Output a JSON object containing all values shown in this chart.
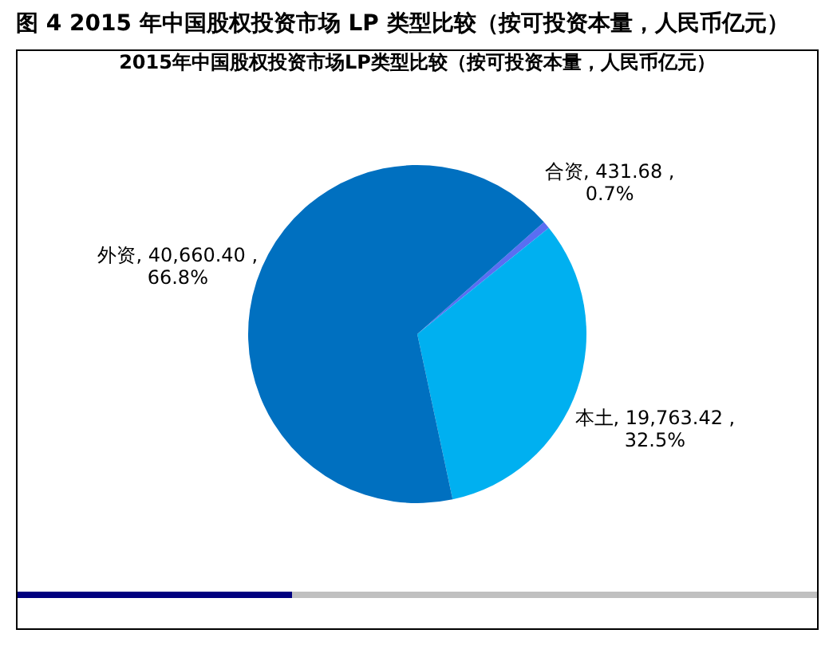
{
  "chart_data": {
    "type": "pie",
    "title": "图 4 2015 年中国股权投资市场 LP 类型比较（按可投资本量，人民币亿元）",
    "subtitle": "2015年中国股权投资市场LP类型比较（按可投资本量，人民币亿元）",
    "categories": [
      "合资",
      "本土",
      "外资"
    ],
    "values": [
      431.68,
      19763.42,
      40660.4
    ],
    "colors": [
      "#5a6ef2",
      "#00b0f0",
      "#0070c0"
    ],
    "value_labels": [
      "431.68 ,\n0.7%",
      "19,763.42 ,\n32.5%",
      "40,660.40 ,\n66.8%"
    ],
    "legend": false
  }
}
